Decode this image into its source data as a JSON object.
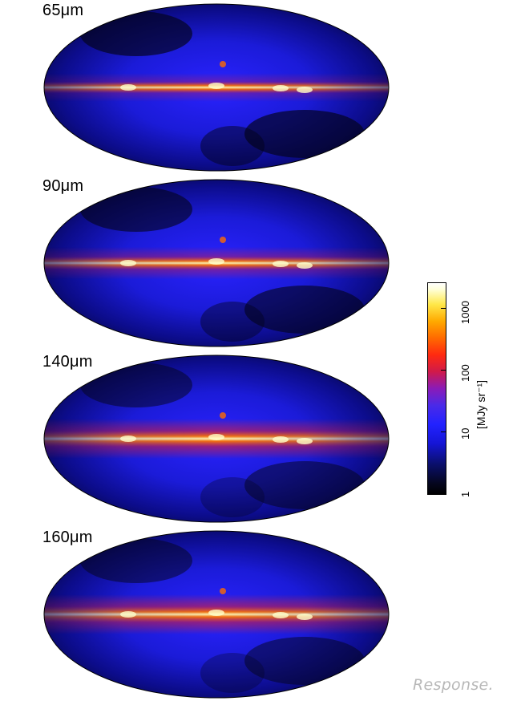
{
  "panels": [
    {
      "label": "65μm"
    },
    {
      "label": "90μm"
    },
    {
      "label": "140μm"
    },
    {
      "label": "160μm"
    }
  ],
  "colorbar": {
    "unit": "[MJy sr⁻¹]",
    "ticks": [
      "1",
      "10",
      "100",
      "1000"
    ],
    "scale": "log",
    "range": [
      1,
      2000
    ]
  },
  "watermark": "Response."
}
